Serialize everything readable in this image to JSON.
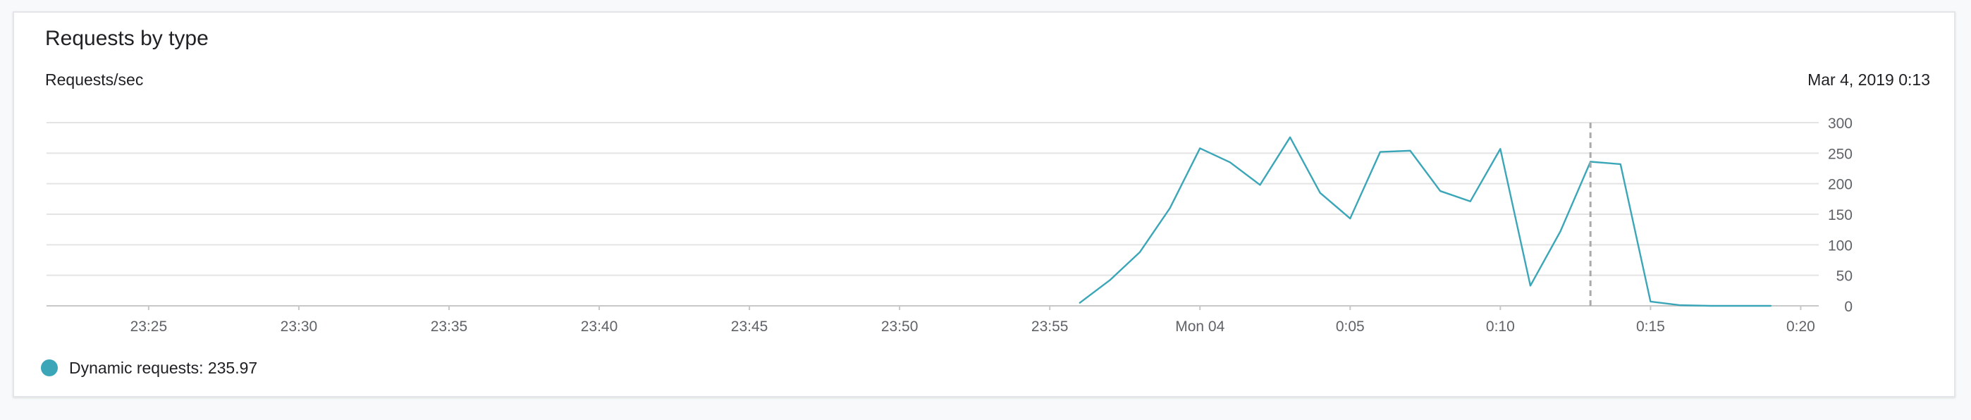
{
  "card": {
    "title": "Requests by type",
    "ylabel": "Requests/sec",
    "timestamp": "Mar 4, 2019 0:13"
  },
  "legend": {
    "label": "Dynamic requests: 235.97",
    "color": "#3ba6b8"
  },
  "colors": {
    "series": "#3ba6b8",
    "grid": "#e4e4e4",
    "axis": "#c8c8c8",
    "tick_text": "#5f6368",
    "cursor": "#aaaaaa"
  },
  "chart_data": {
    "type": "line",
    "title": "Requests by type",
    "ylabel": "Requests/sec",
    "xlabel": "",
    "x_unit": "minutes",
    "xlim": [
      -38.4,
      20.6
    ],
    "ylim": [
      0,
      300
    ],
    "grid": true,
    "legend_position": "bottom-left",
    "x_ticks": [
      {
        "label": "23:25",
        "x": -35
      },
      {
        "label": "23:30",
        "x": -30
      },
      {
        "label": "23:35",
        "x": -25
      },
      {
        "label": "23:40",
        "x": -20
      },
      {
        "label": "23:45",
        "x": -15
      },
      {
        "label": "23:50",
        "x": -10
      },
      {
        "label": "23:55",
        "x": -5
      },
      {
        "label": "Mon 04",
        "x": 0
      },
      {
        "label": "0:05",
        "x": 5
      },
      {
        "label": "0:10",
        "x": 10
      },
      {
        "label": "0:15",
        "x": 15
      },
      {
        "label": "0:20",
        "x": 20
      }
    ],
    "y_ticks": [
      0,
      50,
      100,
      150,
      200,
      250,
      300
    ],
    "cursor_x": 13,
    "series": [
      {
        "name": "Dynamic requests",
        "color": "#3ba6b8",
        "x": [
          -4,
          -3,
          -2,
          -1,
          0,
          1,
          2,
          3,
          4,
          5,
          6,
          7,
          8,
          9,
          10,
          11,
          12,
          13,
          14,
          15,
          16,
          17,
          18,
          19
        ],
        "y": [
          5,
          42,
          88,
          160,
          258,
          235,
          198,
          276,
          185,
          143,
          252,
          254,
          188,
          171,
          257,
          33,
          122,
          235.97,
          232,
          7,
          1,
          0,
          0,
          0
        ]
      }
    ]
  }
}
